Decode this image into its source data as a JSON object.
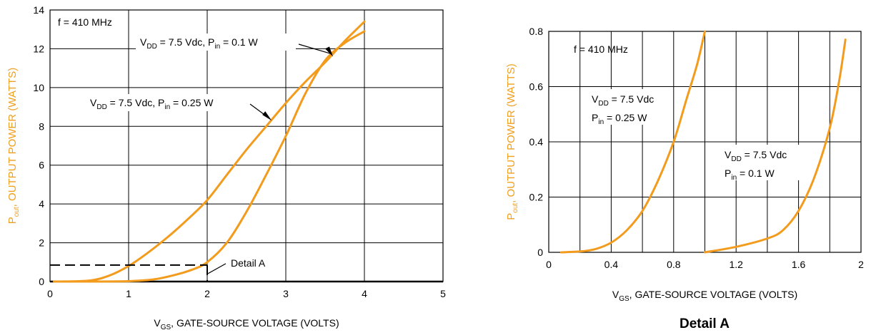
{
  "chart_data": [
    {
      "type": "line",
      "xlabel_main": "V",
      "xlabel_sub": "GS",
      "xlabel_rest": ", GATE-SOURCE VOLTAGE (VOLTS)",
      "ylabel_main": "P",
      "ylabel_sub": "out",
      "ylabel_rest": ", OUTPUT POWER (WATTS)",
      "xlim": [
        0,
        5
      ],
      "ylim": [
        0,
        14
      ],
      "xticks": [
        0,
        1,
        2,
        3,
        4,
        5
      ],
      "yticks": [
        0,
        2,
        4,
        6,
        8,
        10,
        12,
        14
      ],
      "grid": true,
      "annotation_freq": "f = 410 MHz",
      "detail_label": "Detail A",
      "detail_box": {
        "x": 2,
        "y": 0.85
      },
      "series": [
        {
          "name": "V_DD = 7.5 Vdc, P_in = 0.1 W",
          "label_parts": [
            "V",
            "DD",
            " = 7.5 Vdc, P",
            "in",
            " = 0.1 W"
          ],
          "x": [
            0.05,
            0.5,
            1.0,
            1.3,
            1.55,
            1.8,
            2.0,
            2.25,
            2.5,
            2.75,
            3.0,
            3.25,
            3.5,
            3.75,
            4.0
          ],
          "y": [
            0.0,
            0.0,
            0.02,
            0.1,
            0.3,
            0.6,
            1.0,
            2.0,
            3.6,
            5.5,
            7.5,
            9.7,
            11.4,
            12.3,
            12.9
          ]
        },
        {
          "name": "V_DD = 7.5 Vdc, P_in = 0.25 W",
          "label_parts": [
            "V",
            "DD",
            " = 7.5 Vdc, P",
            "in",
            " = 0.25 W"
          ],
          "x": [
            0.1,
            0.5,
            0.75,
            1.0,
            1.25,
            1.5,
            1.75,
            2.0,
            2.25,
            2.5,
            2.75,
            3.0,
            3.25,
            3.5,
            3.75,
            4.0
          ],
          "y": [
            0.0,
            0.05,
            0.3,
            0.8,
            1.5,
            2.3,
            3.2,
            4.2,
            5.5,
            6.8,
            8.0,
            9.2,
            10.3,
            11.3,
            12.4,
            13.4
          ]
        }
      ]
    },
    {
      "type": "line",
      "title": "Detail A",
      "xlabel_main": "V",
      "xlabel_sub": "GS",
      "xlabel_rest": ", GATE-SOURCE VOLTAGE (VOLTS)",
      "ylabel_main": "P",
      "ylabel_sub": "out",
      "ylabel_rest": ", OUTPUT POWER (WATTS)",
      "xlim": [
        0,
        2
      ],
      "ylim": [
        0,
        0.8
      ],
      "xticks": [
        0,
        0.4,
        0.8,
        1.2,
        1.6,
        2
      ],
      "xtick_labels": [
        "0",
        "0.4",
        "0.8",
        "1.2",
        "1.6",
        "2"
      ],
      "yticks": [
        0,
        0.2,
        0.4,
        0.6,
        0.8
      ],
      "ytick_labels": [
        "0",
        "0.2",
        "0.4",
        "0.6",
        "0.8"
      ],
      "grid": true,
      "annotation_freq": "f = 410 MHz",
      "series": [
        {
          "name": "V_DD = 7.5 Vdc P_in = 0.25 W",
          "line1_parts": [
            "V",
            "DD",
            " = 7.5 Vdc"
          ],
          "line2_parts": [
            "P",
            "in",
            " = 0.25 W"
          ],
          "x": [
            0.08,
            0.2,
            0.3,
            0.4,
            0.5,
            0.6,
            0.7,
            0.8,
            0.88,
            0.95,
            1.0
          ],
          "y": [
            0.0,
            0.003,
            0.012,
            0.035,
            0.08,
            0.15,
            0.26,
            0.4,
            0.55,
            0.68,
            0.8
          ]
        },
        {
          "name": "V_DD = 7.5 Vdc P_in = 0.1 W",
          "line1_parts": [
            "V",
            "DD",
            " = 7.5 Vdc"
          ],
          "line2_parts": [
            "P",
            "in",
            " = 0.1 W"
          ],
          "x": [
            1.0,
            1.2,
            1.4,
            1.5,
            1.6,
            1.7,
            1.8,
            1.86,
            1.9
          ],
          "y": [
            0.0,
            0.02,
            0.05,
            0.08,
            0.15,
            0.27,
            0.45,
            0.62,
            0.77
          ]
        }
      ]
    }
  ]
}
